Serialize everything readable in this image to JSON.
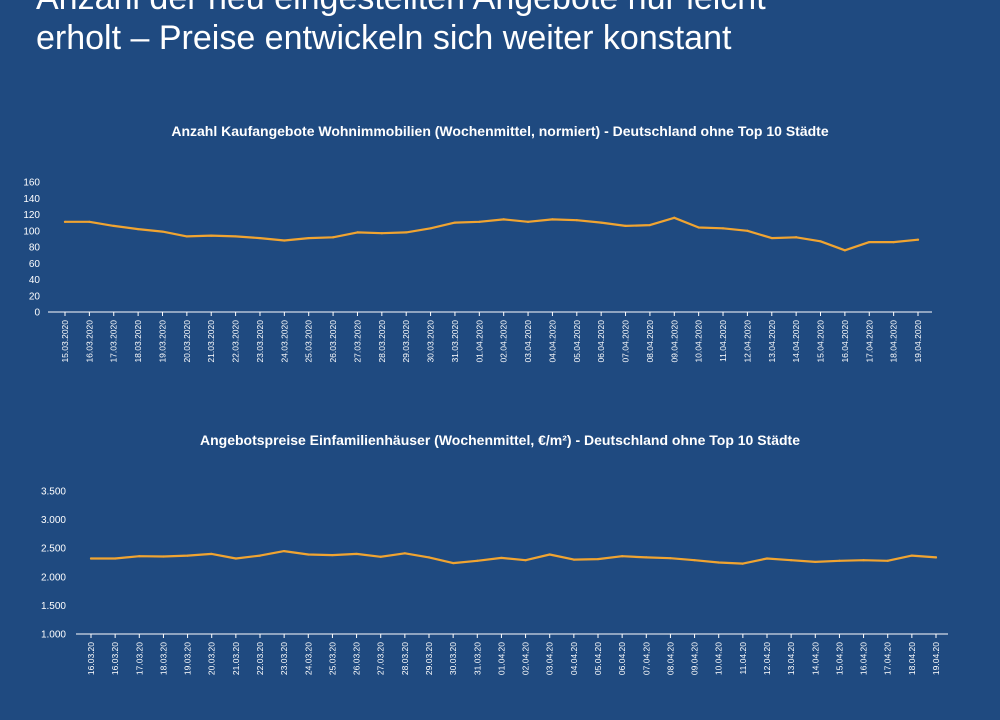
{
  "headline": {
    "line1": "Anzahl der neu eingestellten Angebote nur leicht",
    "line2": "erholt – Preise entwickeln sich weiter konstant"
  },
  "colors": {
    "background": "#1f4a80",
    "series": "#f0a431",
    "axis": "#ffffff"
  },
  "chart_data": [
    {
      "type": "line",
      "title": "Anzahl Kaufangebote Wohnimmobilien (Wochenmittel, normiert) - Deutschland ohne Top 10 Städte",
      "xlabel": "",
      "ylabel": "",
      "ylim": [
        0,
        160
      ],
      "yticks": [
        "0",
        "20",
        "40",
        "60",
        "80",
        "100",
        "120",
        "140",
        "160"
      ],
      "grid": false,
      "legend": "none",
      "categories": [
        "15.03.2020",
        "16.03.2020",
        "17.03.2020",
        "18.03.2020",
        "19.03.2020",
        "20.03.2020",
        "21.03.2020",
        "22.03.2020",
        "23.03.2020",
        "24.03.2020",
        "25.03.2020",
        "26.03.2020",
        "27.03.2020",
        "28.03.2020",
        "29.03.2020",
        "30.03.2020",
        "31.03.2020",
        "01.04.2020",
        "02.04.2020",
        "03.04.2020",
        "04.04.2020",
        "05.04.2020",
        "06.04.2020",
        "07.04.2020",
        "08.04.2020",
        "09.04.2020",
        "10.04.2020",
        "11.04.2020",
        "12.04.2020",
        "13.04.2020",
        "14.04.2020",
        "15.04.2020",
        "16.04.2020",
        "17.04.2020",
        "18.04.2020",
        "19.04.2020"
      ],
      "values": [
        111,
        111,
        106,
        102,
        99,
        93,
        94,
        93,
        91,
        88,
        91,
        92,
        98,
        97,
        98,
        103,
        110,
        111,
        114,
        111,
        114,
        113,
        110,
        106,
        107,
        116,
        104,
        103,
        100,
        91,
        92,
        87,
        76,
        86,
        86,
        89
      ]
    },
    {
      "type": "line",
      "title": "Angebotspreise Einfamilienhäuser (Wochenmittel, €/m²) - Deutschland ohne Top 10 Städte",
      "xlabel": "",
      "ylabel": "",
      "ylim": [
        1000,
        3500
      ],
      "yticks": [
        "1.000",
        "1.500",
        "2.000",
        "2.500",
        "3.000",
        "3.500"
      ],
      "grid": false,
      "legend": "none",
      "categories": [
        "16.03.20",
        "16.03.20",
        "17.03.20",
        "18.03.20",
        "19.03.20",
        "20.03.20",
        "21.03.20",
        "22.03.20",
        "23.03.20",
        "24.03.20",
        "25.03.20",
        "26.03.20",
        "27.03.20",
        "28.03.20",
        "29.03.20",
        "30.03.20",
        "31.03.20",
        "01.04.20",
        "02.04.20",
        "03.04.20",
        "04.04.20",
        "05.04.20",
        "06.04.20",
        "07.04.20",
        "08.04.20",
        "09.04.20",
        "10.04.20",
        "11.04.20",
        "12.04.20",
        "13.04.20",
        "14.04.20",
        "15.04.20",
        "16.04.20",
        "17.04.20",
        "18.04.20",
        "19.04.20"
      ],
      "values": [
        2320,
        2320,
        2360,
        2355,
        2370,
        2400,
        2320,
        2370,
        2450,
        2390,
        2380,
        2400,
        2350,
        2410,
        2340,
        2240,
        2280,
        2330,
        2290,
        2390,
        2300,
        2310,
        2360,
        2340,
        2325,
        2290,
        2250,
        2230,
        2320,
        2290,
        2260,
        2280,
        2290,
        2280,
        2370,
        2340
      ]
    }
  ]
}
